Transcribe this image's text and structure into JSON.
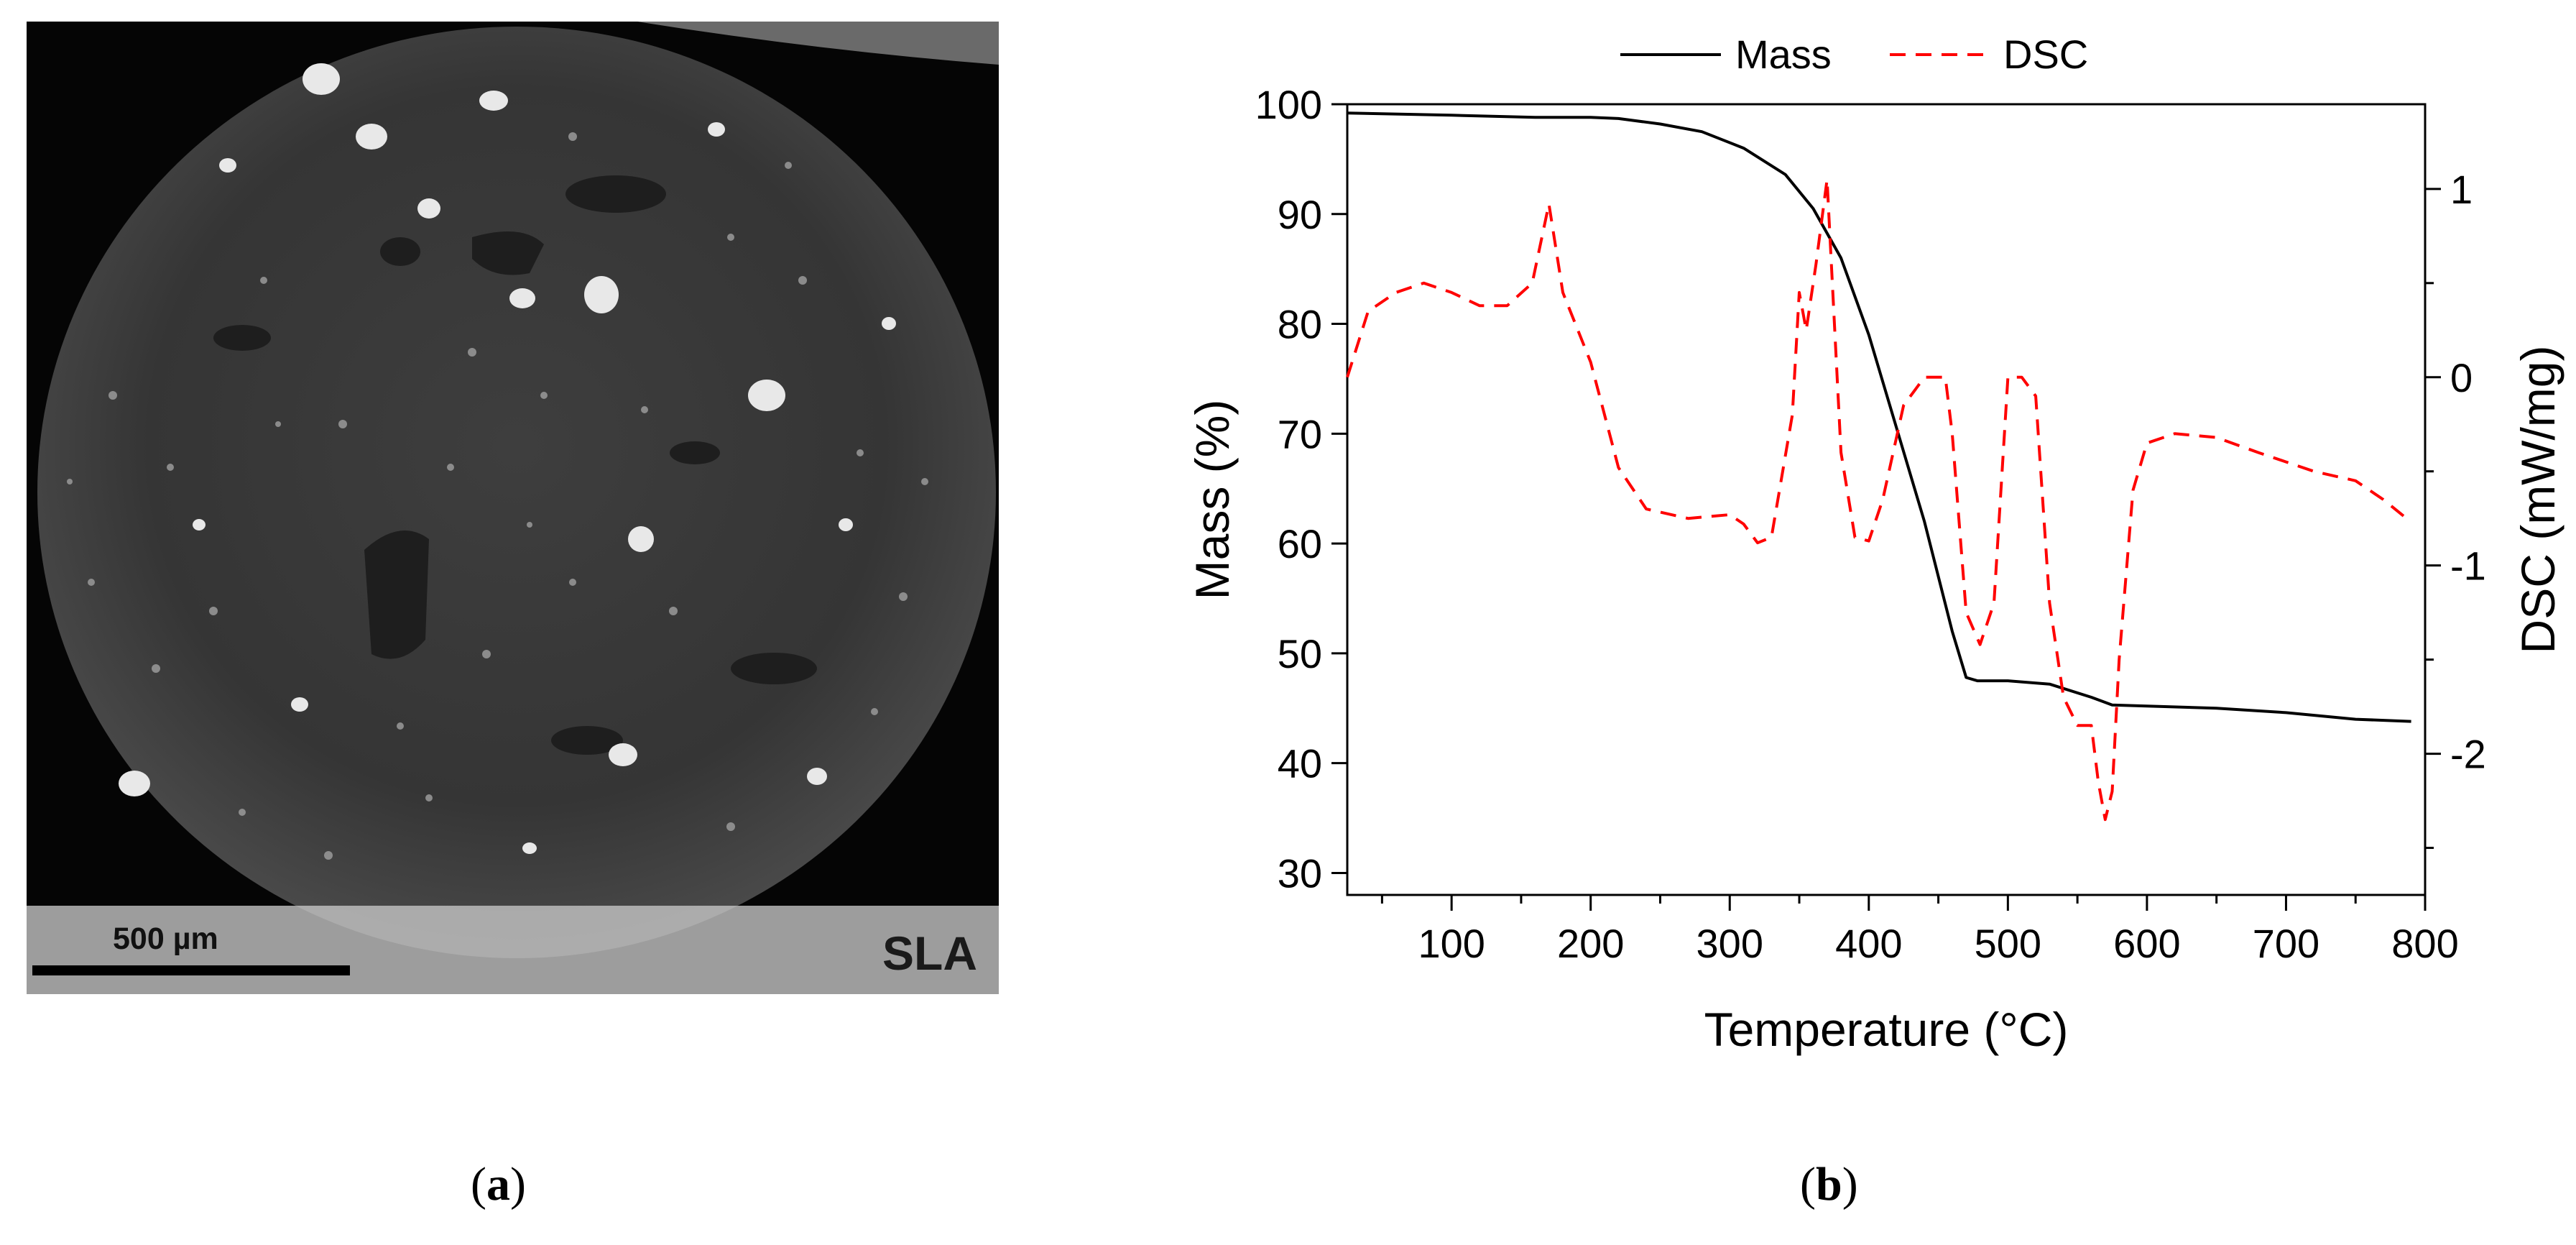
{
  "panels": {
    "a": {
      "label": "a",
      "scale_bar_text": "500 µm",
      "sample_label": "SLA"
    },
    "b": {
      "label": "b"
    }
  },
  "colors": {
    "mass": "#000000",
    "dsc": "#ff0000"
  },
  "chart_data": {
    "type": "line",
    "xlabel": "Temperature (°C)",
    "ylabel_left": "Mass (%)",
    "ylabel_right": "DSC (mW/mg)",
    "xlim": [
      25,
      800
    ],
    "ylim_left": [
      28,
      100
    ],
    "ylim_right": [
      -2.75,
      1.45
    ],
    "x_ticks": [
      100,
      200,
      300,
      400,
      500,
      600,
      700,
      800
    ],
    "y_left_ticks": [
      30,
      40,
      50,
      60,
      70,
      80,
      90,
      100
    ],
    "y_right_ticks": [
      -2,
      -1,
      0,
      1
    ],
    "legend": {
      "position": "top",
      "entries": [
        "Mass",
        "DSC"
      ]
    },
    "series": [
      {
        "name": "Mass",
        "axis": "left",
        "style": "solid",
        "x": [
          25,
          100,
          160,
          200,
          220,
          250,
          280,
          310,
          340,
          360,
          380,
          400,
          420,
          440,
          460,
          470,
          478,
          500,
          530,
          560,
          575,
          600,
          650,
          700,
          750,
          790
        ],
        "y": [
          99.2,
          99.0,
          98.8,
          98.8,
          98.7,
          98.2,
          97.5,
          96.0,
          93.6,
          90.5,
          86.0,
          79.0,
          70.5,
          62.0,
          52.0,
          47.8,
          47.5,
          47.5,
          47.2,
          46.0,
          45.3,
          45.2,
          45.0,
          44.6,
          44.0,
          43.8
        ]
      },
      {
        "name": "DSC",
        "axis": "right",
        "style": "dashed",
        "x": [
          25,
          40,
          60,
          80,
          100,
          120,
          140,
          158,
          170,
          180,
          200,
          220,
          240,
          270,
          300,
          310,
          320,
          330,
          345,
          350,
          355,
          362,
          370,
          380,
          390,
          400,
          410,
          425,
          440,
          455,
          460,
          470,
          480,
          490,
          500,
          510,
          520,
          530,
          540,
          550,
          560,
          565,
          570,
          575,
          580,
          590,
          600,
          620,
          650,
          680,
          700,
          720,
          750,
          770,
          790
        ],
        "y": [
          0.0,
          0.35,
          0.45,
          0.5,
          0.45,
          0.38,
          0.38,
          0.5,
          0.92,
          0.45,
          0.08,
          -0.48,
          -0.7,
          -0.75,
          -0.73,
          -0.78,
          -0.88,
          -0.85,
          -0.2,
          0.45,
          0.25,
          0.6,
          1.05,
          -0.4,
          -0.85,
          -0.87,
          -0.65,
          -0.15,
          0.0,
          0.0,
          -0.3,
          -1.25,
          -1.42,
          -1.2,
          0.0,
          0.0,
          -0.1,
          -1.2,
          -1.7,
          -1.85,
          -1.85,
          -2.15,
          -2.35,
          -2.2,
          -1.5,
          -0.6,
          -0.35,
          -0.3,
          -0.32,
          -0.4,
          -0.45,
          -0.5,
          -0.55,
          -0.65,
          -0.77
        ]
      }
    ]
  }
}
